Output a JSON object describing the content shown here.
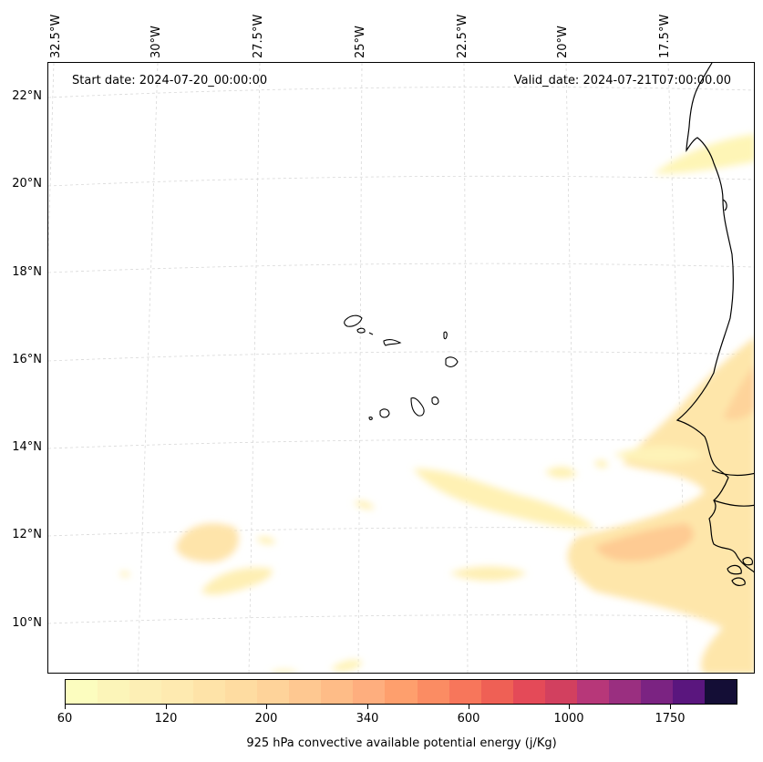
{
  "header": {
    "start_date": "Start date: 2024-07-20_00:00:00",
    "valid_date": "Valid_date: 2024-07-21T07:00:00.00"
  },
  "map": {
    "projection": "rotated lat/lon",
    "lon_labels": [
      "32.5°W",
      "30°W",
      "27.5°W",
      "25°W",
      "22.5°W",
      "20°W",
      "17.5°W"
    ],
    "lat_labels": [
      "22°N",
      "20°N",
      "18°N",
      "16°N",
      "14°N",
      "12°N",
      "10°N"
    ],
    "gridlines": "dashed light gray",
    "coastline_color": "#000000",
    "field": "925 hPa CAPE",
    "field_regions": [
      "Mauritania coast near Nouadhibou (~21°N, 17°W)",
      "Senegal / Gambia / Guinea-Bissau coast (11–16°N)",
      "Tropical Atlantic bands near 11–13°N"
    ]
  },
  "colorbar": {
    "label": "925 hPa convective available potential energy (j/Kg)",
    "tick_labels": [
      "60",
      "120",
      "200",
      "340",
      "600",
      "1000",
      "1750"
    ],
    "colors": [
      "#fcfdbf",
      "#fcf5b9",
      "#fdefb5",
      "#feeab0",
      "#fee3a8",
      "#fedca1",
      "#fed39a",
      "#fec891",
      "#febc87",
      "#feae7e",
      "#fe9f6d",
      "#fb8c63",
      "#f7765b",
      "#ef6055",
      "#e44a58",
      "#d2405f",
      "#b73779",
      "#9a2f80",
      "#7b2382",
      "#5a167e",
      "#140e36"
    ]
  }
}
